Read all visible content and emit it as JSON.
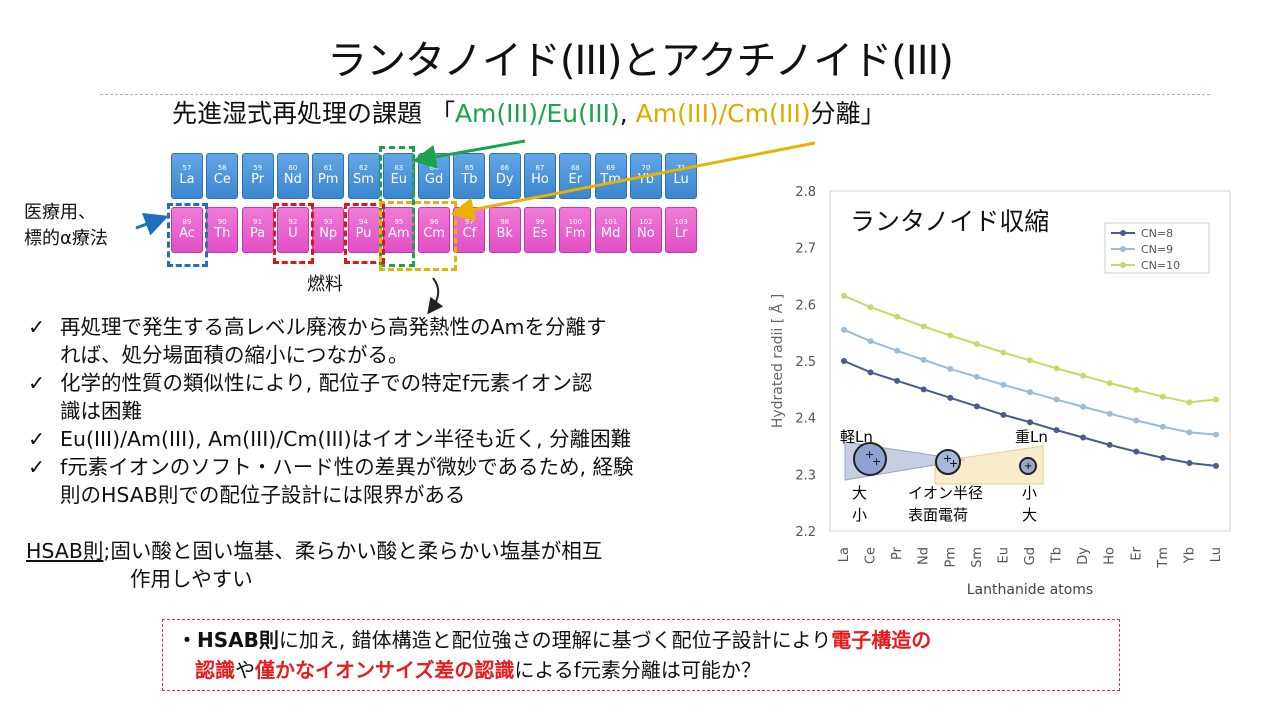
{
  "slide": {
    "title": "ランタノイド(III)とアクチノイド(III)",
    "subtitle": {
      "prefix": "先進湿式再処理の課題 「",
      "green_text": "Am(III)/Eu(III)",
      "sep": ", ",
      "gold_text": "Am(III)/Cm(III)",
      "suffix": "分離」"
    }
  },
  "periodic_table": {
    "lanthanides": [
      {
        "num": "57",
        "sym": "La"
      },
      {
        "num": "58",
        "sym": "Ce"
      },
      {
        "num": "59",
        "sym": "Pr"
      },
      {
        "num": "60",
        "sym": "Nd"
      },
      {
        "num": "61",
        "sym": "Pm"
      },
      {
        "num": "62",
        "sym": "Sm"
      },
      {
        "num": "63",
        "sym": "Eu"
      },
      {
        "num": "64",
        "sym": "Gd"
      },
      {
        "num": "65",
        "sym": "Tb"
      },
      {
        "num": "66",
        "sym": "Dy"
      },
      {
        "num": "67",
        "sym": "Ho"
      },
      {
        "num": "68",
        "sym": "Er"
      },
      {
        "num": "69",
        "sym": "Tm"
      },
      {
        "num": "70",
        "sym": "Yb"
      },
      {
        "num": "71",
        "sym": "Lu"
      }
    ],
    "actinides": [
      {
        "num": "89",
        "sym": "Ac"
      },
      {
        "num": "90",
        "sym": "Th"
      },
      {
        "num": "91",
        "sym": "Pa"
      },
      {
        "num": "92",
        "sym": "U"
      },
      {
        "num": "93",
        "sym": "Np"
      },
      {
        "num": "94",
        "sym": "Pu"
      },
      {
        "num": "95",
        "sym": "Am"
      },
      {
        "num": "96",
        "sym": "Cm"
      },
      {
        "num": "97",
        "sym": "Cf"
      },
      {
        "num": "98",
        "sym": "Bk"
      },
      {
        "num": "99",
        "sym": "Es"
      },
      {
        "num": "100",
        "sym": "Fm"
      },
      {
        "num": "101",
        "sym": "Md"
      },
      {
        "num": "102",
        "sym": "No"
      },
      {
        "num": "103",
        "sym": "Lr"
      }
    ],
    "medical_label": [
      "医療用、",
      "標的α療法"
    ],
    "fuel_label": "燃料",
    "colors": {
      "lanthanide": "#4a93dc",
      "actinide": "#e85ccc",
      "green": "#1aa34a",
      "gold": "#e8b300",
      "red": "#e01515",
      "blue": "#1f6fc0"
    }
  },
  "bullets": {
    "mark": "✓",
    "items": [
      {
        "line1": "再処理で発生する高レベル廃液から高発熱性のAmを分離す",
        "line2": "れば、処分場面積の縮小につながる。"
      },
      {
        "line1": "化学的性質の類似性により, 配位子での特定f元素イオン認",
        "line2": "識は困難"
      },
      {
        "line1": "Eu(III)/Am(III), Am(III)/Cm(III)はイオン半径も近く, 分離困難",
        "line2": ""
      },
      {
        "line1": "f元素イオンのソフト・ハード性の差異が微妙であるため, 経験",
        "line2": "則のHSAB則での配位子設計には限界がある"
      }
    ]
  },
  "hsab": {
    "term": "HSAB則",
    "def1": ";固い酸と固い塩基、柔らかい酸と柔らかい塩基が相互",
    "def2": "作用しやすい"
  },
  "callout": {
    "p1": "・",
    "p2": "HSAB則",
    "p3": "に加え, 錯体構造と配位強さの理解に基づく配位子設計により",
    "p4": "電子構造の",
    "p5": "認識",
    "p6": "や",
    "p7": "僅かなイオンサイズ差の認識",
    "p8": "によるf元素分離は可能か？"
  },
  "chart_data": {
    "type": "line",
    "title": "ランタノイド収縮",
    "xlabel": "Lanthanide atoms",
    "ylabel": "Hydrated radii [ Å ]",
    "categories": [
      "La",
      "Ce",
      "Pr",
      "Nd",
      "Pm",
      "Sm",
      "Eu",
      "Gd",
      "Tb",
      "Dy",
      "Ho",
      "Er",
      "Tm",
      "Yb",
      "Lu"
    ],
    "ylim": [
      2.2,
      2.8
    ],
    "yticks": [
      "2.2",
      "2.3",
      "2.4",
      "2.5",
      "2.6",
      "2.7",
      "2.8"
    ],
    "legend_position": "top-right",
    "series": [
      {
        "name": "CN=8",
        "color": "#4a5a8c",
        "values": [
          2.5,
          2.48,
          2.465,
          2.45,
          2.435,
          2.42,
          2.405,
          2.392,
          2.378,
          2.365,
          2.352,
          2.34,
          2.329,
          2.32,
          2.315
        ]
      },
      {
        "name": "CN=9",
        "color": "#9dbcd6",
        "values": [
          2.555,
          2.535,
          2.518,
          2.502,
          2.486,
          2.472,
          2.458,
          2.445,
          2.432,
          2.419,
          2.407,
          2.395,
          2.384,
          2.374,
          2.37
        ]
      },
      {
        "name": "CN=10",
        "color": "#c8d96a",
        "values": [
          2.615,
          2.595,
          2.578,
          2.561,
          2.545,
          2.53,
          2.515,
          2.501,
          2.487,
          2.474,
          2.461,
          2.449,
          2.437,
          2.427,
          2.432
        ]
      }
    ],
    "annotations": {
      "light": "軽Ln",
      "heavy": "重Ln",
      "large": "大",
      "small": "小",
      "ion_radius": "イオン半径",
      "surface_charge": "表面電荷",
      "small2": "小",
      "large2": "大",
      "ion_plus": "+"
    }
  }
}
